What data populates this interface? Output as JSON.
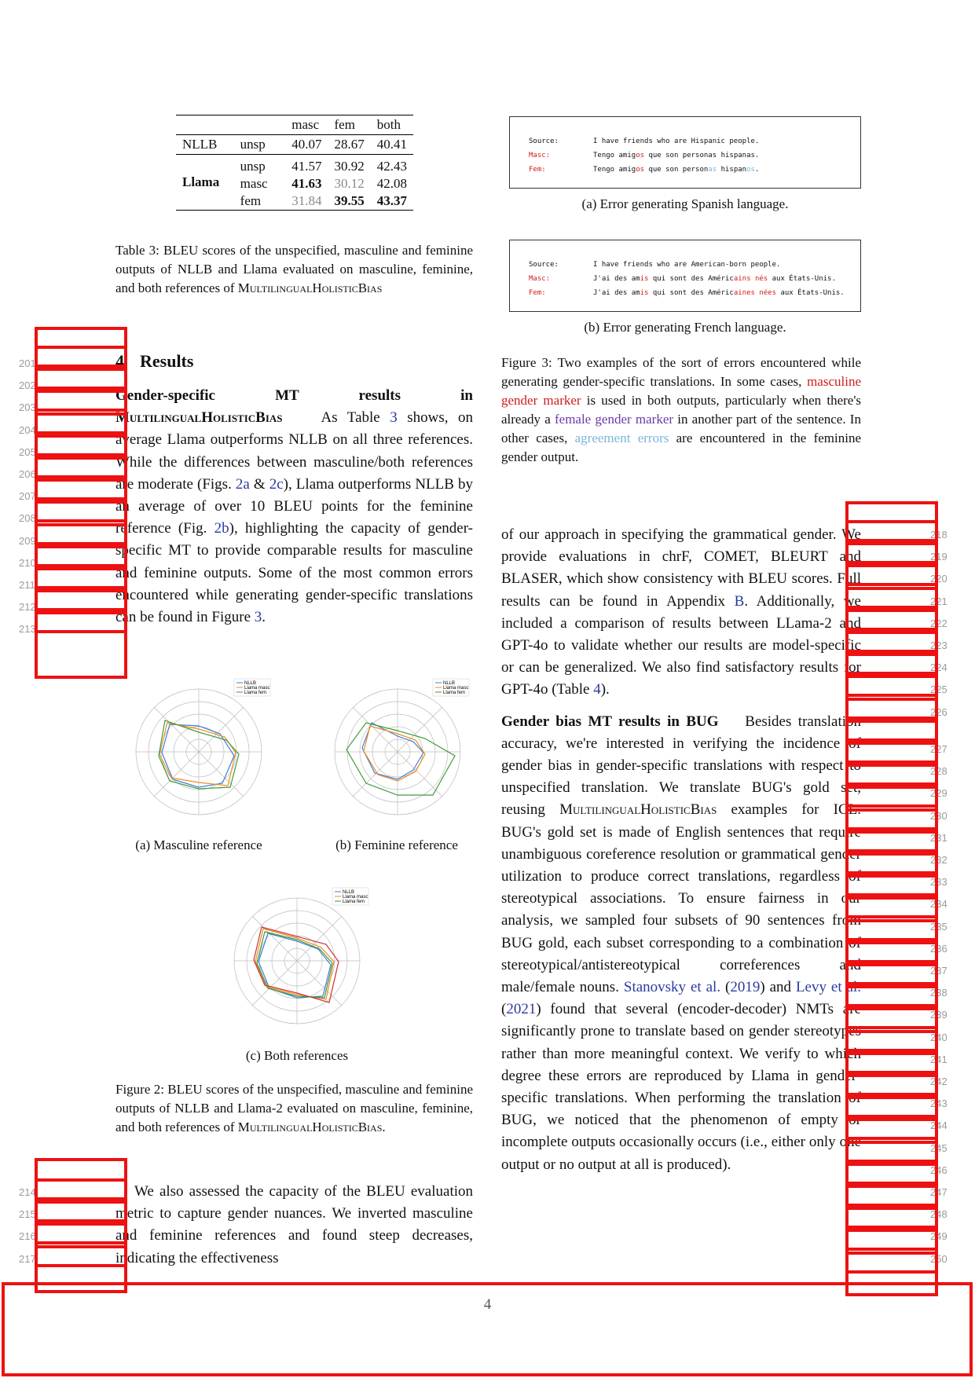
{
  "table3": {
    "headers": [
      "",
      "",
      "masc",
      "fem",
      "both"
    ],
    "nllb": {
      "model": "NLLB",
      "rows": [
        {
          "ref": "unsp",
          "masc": "40.07",
          "fem": "28.67",
          "both": "40.41"
        }
      ]
    },
    "llama": {
      "model": "Llama",
      "rows": [
        {
          "ref": "unsp",
          "masc": "41.57",
          "fem": "30.92",
          "both": "42.43"
        },
        {
          "ref": "masc",
          "masc": "41.63",
          "fem": "30.12",
          "both": "42.08"
        },
        {
          "ref": "fem",
          "masc": "31.84",
          "fem": "39.55",
          "both": "43.37"
        }
      ]
    },
    "caption": "Table 3: BLEU scores of the unspecified, masculine and feminine outputs of NLLB and Llama evaluated on masculine, feminine, and both references of ",
    "caption_sc": "MultilingualHolisticBias"
  },
  "figure3": {
    "a": {
      "source_label": "Source:",
      "source": "I have friends who are Hispanic people.",
      "masc_label": "Masc:",
      "masc_pre": "Tengo amig",
      "masc_hl": "os",
      "masc_post": " que son personas hispanas.",
      "fem_label": "Fem:",
      "fem_pre": "Tengo amig",
      "fem_hl1": "os",
      "fem_mid": " que son person",
      "fem_hl2": "as",
      "fem_mid2": " hispan",
      "fem_hl3": "os",
      "fem_post": ".",
      "caption": "(a) Error generating Spanish language."
    },
    "b": {
      "source_label": "Source:",
      "source": "I have friends who are American-born people.",
      "masc_label": "Masc:",
      "masc_pre": "J'ai des am",
      "masc_hl1": "is",
      "masc_mid": " qui sont des Améric",
      "masc_hl2": "ains",
      "masc_mid2": " ",
      "masc_hl3": "nés",
      "masc_post": " aux États-Unis.",
      "fem_label": "Fem:",
      "fem_pre": "J'ai des am",
      "fem_hl1": "is",
      "fem_mid": " qui sont des Améric",
      "fem_hl2": "aines",
      "fem_mid2": " ",
      "fem_hl3": "nées",
      "fem_post": " aux États-Unis.",
      "caption": "(b) Error generating French language."
    },
    "caption_pre": "Figure 3: Two examples of the sort of errors encountered while generating gender-specific translations. In some cases, ",
    "caption_red": "masculine gender marker",
    "caption_mid": " is used in both outputs, particularly when there's already a ",
    "caption_purple": "female gender marker",
    "caption_mid2": " in another part of the sentence. In other cases, ",
    "caption_blue": "agreement errors",
    "caption_post": " are encountered in the feminine gender output."
  },
  "section4": {
    "number": "4",
    "title": "Results",
    "para1_head": "Gender-specific MT results in ",
    "para1_head_sc": "MultilingualHolisticBias",
    "para1_text_a": "As Table ",
    "para1_ref1": "3",
    "para1_text_b": " shows, on average Llama outperforms NLLB on all three references. While the differences between masculine/both references are moderate (Figs. ",
    "para1_ref2": "2a",
    "para1_amp": " & ",
    "para1_ref3": "2c",
    "para1_text_c": "), Llama outperforms NLLB by an average of over 10 BLEU points for the feminine reference (Fig. ",
    "para1_ref4": "2b",
    "para1_text_d": "), highlighting the capacity of gender-specific MT to provide comparable results for masculine and feminine outputs. Some of the most common errors encountered while generating gender-specific translations can be found in Figure ",
    "para1_ref5": "3",
    "para1_end": ".",
    "line_numbers": [
      "201",
      "202",
      "203",
      "204",
      "205",
      "206",
      "207",
      "208",
      "209",
      "210",
      "211",
      "212",
      "213"
    ]
  },
  "figure2": {
    "a_caption": "(a) Masculine reference",
    "b_caption": "(b) Feminine reference",
    "c_caption": "(c) Both references",
    "legend": [
      "NLLB",
      "Llama masc",
      "Llama fem"
    ],
    "caption": "Figure 2: BLEU scores of the unspecified, masculine and feminine outputs of NLLB and Llama-2 evaluated on masculine, feminine, and both references of ",
    "caption_sc": "MultilingualHolisticBias",
    "caption_end": "."
  },
  "left_bottom": {
    "text": "We also assessed the capacity of the BLEU evaluation metric to capture gender nuances. We inverted masculine and feminine references and found steep decreases, indicating the effectiveness",
    "line_numbers": [
      "214",
      "215",
      "216",
      "217"
    ]
  },
  "right_col": {
    "para_a_pre": "of our approach in specifying the grammatical gender. We provide evaluations in chrF, COMET, BLEURT and BLASER, which show consistency with BLEU scores. Full results can be found in Appendix ",
    "para_a_ref1": "B",
    "para_a_mid": ". Additionally, we included a comparison of results between LLama-2 and GPT-4o to validate whether our results are model-specific or can be generalized. We also find satisfactory results for GPT-4o (Table ",
    "para_a_ref2": "4",
    "para_a_end": ").",
    "para_b_head": "Gender bias MT results in BUG",
    "para_b_pre": "Besides translation accuracy, we're interested in verifying the incidence of gender bias in gender-specific translations with respect to unspecified translation. We translate BUG's gold set, reusing ",
    "para_b_sc": "MultilingualHolisticBias",
    "para_b_mid": " examples for ICL. BUG's gold set is made of English sentences that require unambiguous coreference resolution or grammatical gender utilization to produce correct translations, regardless of stereotypical associations. To ensure fairness in our analysis, we sampled four subsets of 90 sentences from BUG gold, each subset corresponding to a combination of stereotypical/antistereotypical correferences and male/female nouns. ",
    "para_b_cite1": "Stanovsky et al.",
    "para_b_y1_open": " (",
    "para_b_y1": "2019",
    "para_b_y1_close": ") and ",
    "para_b_cite2": "Levy et al.",
    "para_b_y2_open": " (",
    "para_b_y2": "2021",
    "para_b_post": ") found that several (encoder-decoder) NMTs are significantly prone to translate based on gender stereotypes rather than more meaningful context. We verify to which degree these errors are reproduced by Llama in gender-specific translations. When performing the translation of BUG, we noticed that the phenomenon of empty or incomplete outputs occasionally occurs (i.e., either only one output or no output at all is produced).",
    "line_numbers": [
      "218",
      "219",
      "220",
      "221",
      "222",
      "223",
      "224",
      "225",
      "226",
      "227",
      "228",
      "229",
      "230",
      "231",
      "232",
      "233",
      "234",
      "235",
      "236",
      "237",
      "238",
      "239",
      "240",
      "241",
      "242",
      "243",
      "244",
      "245",
      "246",
      "247",
      "248",
      "249",
      "250"
    ]
  },
  "page_number": "4",
  "colors": {
    "annotation": "#ee1111",
    "link": "#2a3aa0",
    "masc_marker": "#d01b1b",
    "fem_marker": "#6a3aa8",
    "agreement": "#7cb4dc"
  }
}
